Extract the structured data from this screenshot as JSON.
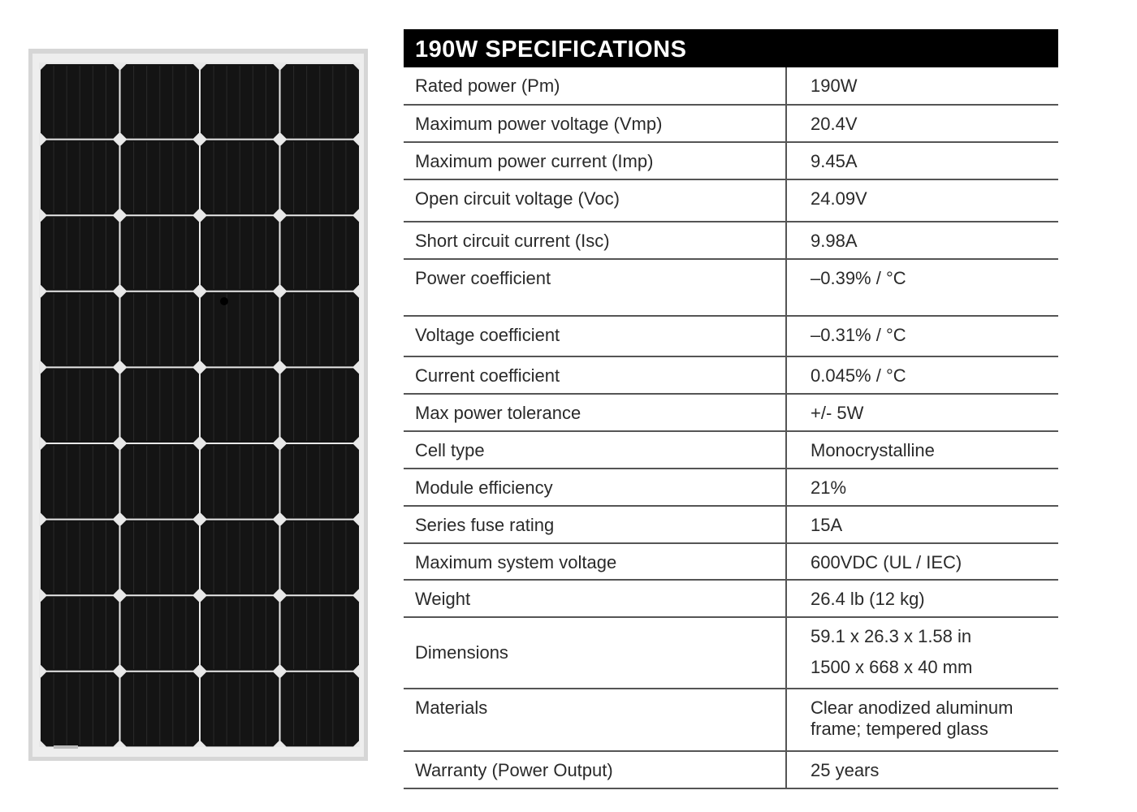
{
  "header": {
    "title": "190W SPECIFICATIONS"
  },
  "table": {
    "rows": [
      [
        "Rated power (Pm)",
        "190W"
      ],
      [
        "Maximum power voltage (Vmp)",
        "20.4V"
      ],
      [
        "Maximum power current (Imp)",
        "9.45A"
      ],
      [
        "Open circuit voltage (Voc)",
        "24.09V"
      ],
      [
        "Short circuit current (Isc)",
        "9.98A"
      ],
      [
        "Power coefficient",
        "–0.39% / °C"
      ],
      [
        "Voltage coefficient",
        "–0.31% / °C"
      ],
      [
        "Current coefficient",
        "0.045% / °C"
      ],
      [
        "Max power tolerance",
        "+/- 5W"
      ],
      [
        "Cell type",
        "Monocrystalline"
      ],
      [
        "Module efficiency",
        "21%"
      ],
      [
        "Series fuse rating",
        "15A"
      ],
      [
        "Maximum system voltage",
        "600VDC  (UL / IEC)"
      ],
      [
        "Weight",
        "26.4 lb (12 kg)"
      ],
      [
        "Dimensions",
        [
          "59.1 x 26.3 x 1.58 in",
          "1500 x 668 x 40 mm"
        ]
      ],
      [
        "Materials",
        "Clear anodized aluminum frame; tempered glass"
      ],
      [
        "Warranty (Power Output)",
        "25 years"
      ]
    ]
  }
}
